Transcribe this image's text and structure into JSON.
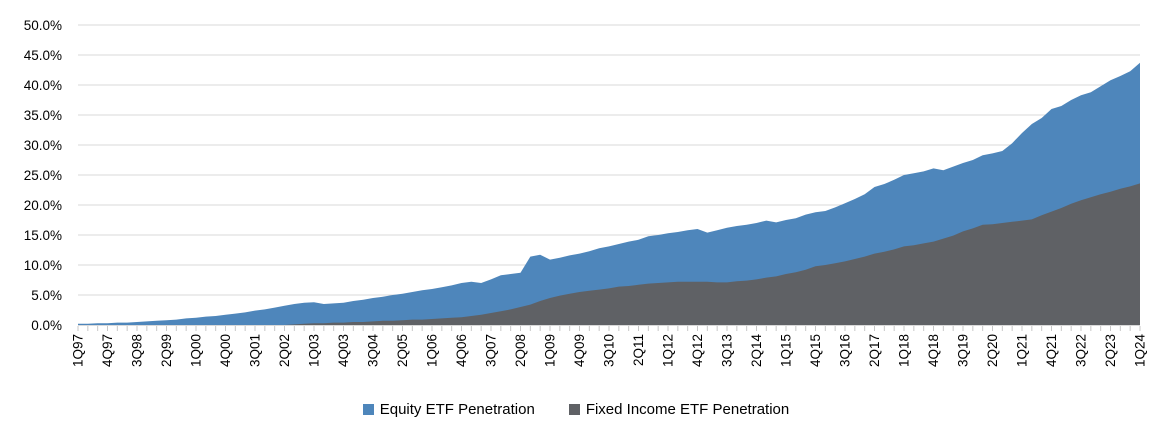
{
  "chart_data": {
    "type": "area",
    "title": "",
    "xlabel": "",
    "ylabel": "",
    "ylim": [
      0,
      50
    ],
    "y_tick_step": 5,
    "y_tick_labels": [
      "0.0%",
      "5.0%",
      "10.0%",
      "15.0%",
      "20.0%",
      "25.0%",
      "30.0%",
      "35.0%",
      "40.0%",
      "45.0%",
      "50.0%"
    ],
    "grid": true,
    "legend_position": "bottom-center",
    "x_tick_every": 3,
    "x_tick_labels_visible": [
      "1Q97",
      "4Q97",
      "3Q98",
      "2Q99",
      "1Q00",
      "4Q00",
      "3Q01",
      "2Q02",
      "1Q03",
      "4Q03",
      "3Q04",
      "2Q05",
      "1Q06",
      "4Q06",
      "3Q07",
      "2Q08",
      "1Q09",
      "4Q09",
      "3Q10",
      "2Q11",
      "1Q12",
      "4Q12",
      "3Q13",
      "2Q14",
      "1Q15",
      "4Q15",
      "3Q16",
      "2Q17",
      "1Q18",
      "4Q18",
      "3Q19",
      "2Q20",
      "1Q21",
      "4Q21",
      "3Q22",
      "2Q23",
      "1Q24"
    ],
    "categories": [
      "1Q97",
      "2Q97",
      "3Q97",
      "4Q97",
      "1Q98",
      "2Q98",
      "3Q98",
      "4Q98",
      "1Q99",
      "2Q99",
      "3Q99",
      "4Q99",
      "1Q00",
      "2Q00",
      "3Q00",
      "4Q00",
      "1Q01",
      "2Q01",
      "3Q01",
      "4Q01",
      "1Q02",
      "2Q02",
      "3Q02",
      "4Q02",
      "1Q03",
      "2Q03",
      "3Q03",
      "4Q03",
      "1Q04",
      "2Q04",
      "3Q04",
      "4Q04",
      "1Q05",
      "2Q05",
      "3Q05",
      "4Q05",
      "1Q06",
      "2Q06",
      "3Q06",
      "4Q06",
      "1Q07",
      "2Q07",
      "3Q07",
      "4Q07",
      "1Q08",
      "2Q08",
      "3Q08",
      "4Q08",
      "1Q09",
      "2Q09",
      "3Q09",
      "4Q09",
      "1Q10",
      "2Q10",
      "3Q10",
      "4Q10",
      "1Q11",
      "2Q11",
      "3Q11",
      "4Q11",
      "1Q12",
      "2Q12",
      "3Q12",
      "4Q12",
      "1Q13",
      "2Q13",
      "3Q13",
      "4Q13",
      "1Q14",
      "2Q14",
      "3Q14",
      "4Q14",
      "1Q15",
      "2Q15",
      "3Q15",
      "4Q15",
      "1Q16",
      "2Q16",
      "3Q16",
      "4Q16",
      "1Q17",
      "2Q17",
      "3Q17",
      "4Q17",
      "1Q18",
      "2Q18",
      "3Q18",
      "4Q18",
      "1Q19",
      "2Q19",
      "3Q19",
      "4Q19",
      "1Q20",
      "2Q20",
      "3Q20",
      "4Q20",
      "1Q21",
      "2Q21",
      "3Q21",
      "4Q21",
      "1Q22",
      "2Q22",
      "3Q22",
      "4Q22",
      "1Q23",
      "2Q23",
      "3Q23",
      "4Q23",
      "1Q24"
    ],
    "series": [
      {
        "name": "Equity ETF Penetration",
        "color": "#4E86BB",
        "values": [
          0.2,
          0.2,
          0.3,
          0.3,
          0.4,
          0.4,
          0.5,
          0.6,
          0.7,
          0.8,
          0.9,
          1.1,
          1.2,
          1.4,
          1.5,
          1.7,
          1.9,
          2.1,
          2.4,
          2.6,
          2.9,
          3.2,
          3.5,
          3.7,
          3.8,
          3.5,
          3.6,
          3.7,
          4.0,
          4.2,
          4.5,
          4.7,
          5.0,
          5.2,
          5.5,
          5.8,
          6.0,
          6.3,
          6.6,
          7.0,
          7.2,
          7.0,
          7.6,
          8.3,
          8.5,
          8.7,
          11.4,
          11.7,
          10.9,
          11.2,
          11.6,
          11.9,
          12.3,
          12.8,
          13.1,
          13.5,
          13.9,
          14.2,
          14.8,
          15.0,
          15.3,
          15.5,
          15.8,
          16.0,
          15.4,
          15.8,
          16.2,
          16.5,
          16.7,
          17.0,
          17.4,
          17.1,
          17.5,
          17.8,
          18.4,
          18.8,
          19.0,
          19.6,
          20.3,
          21.0,
          21.8,
          23.0,
          23.5,
          24.2,
          25.0,
          25.3,
          25.6,
          26.1,
          25.8,
          26.4,
          27.0,
          27.5,
          28.3,
          28.6,
          29.0,
          30.3,
          32.0,
          33.5,
          34.5,
          36.0,
          36.5,
          37.5,
          38.3,
          38.8,
          39.8,
          40.8,
          41.5,
          42.3,
          43.7
        ]
      },
      {
        "name": "Fixed Income ETF Penetration",
        "color": "#5F6165",
        "values": [
          0,
          0,
          0,
          0,
          0,
          0,
          0,
          0,
          0,
          0,
          0,
          0,
          0,
          0,
          0,
          0,
          0,
          0,
          0,
          0,
          0,
          0,
          0.1,
          0.2,
          0.3,
          0.3,
          0.4,
          0.4,
          0.5,
          0.5,
          0.6,
          0.7,
          0.7,
          0.8,
          0.9,
          0.9,
          1.0,
          1.1,
          1.2,
          1.3,
          1.5,
          1.7,
          2.0,
          2.3,
          2.6,
          3.0,
          3.4,
          4.0,
          4.5,
          4.9,
          5.2,
          5.5,
          5.7,
          5.9,
          6.1,
          6.4,
          6.5,
          6.7,
          6.9,
          7.0,
          7.1,
          7.2,
          7.2,
          7.2,
          7.2,
          7.1,
          7.1,
          7.3,
          7.4,
          7.6,
          7.9,
          8.1,
          8.5,
          8.8,
          9.2,
          9.8,
          10.0,
          10.3,
          10.6,
          11.0,
          11.4,
          11.9,
          12.2,
          12.6,
          13.1,
          13.3,
          13.6,
          13.9,
          14.4,
          14.9,
          15.6,
          16.1,
          16.7,
          16.8,
          17.0,
          17.2,
          17.4,
          17.6,
          18.3,
          18.9,
          19.5,
          20.2,
          20.8,
          21.3,
          21.8,
          22.2,
          22.7,
          23.1,
          23.6
        ]
      }
    ],
    "colors": {
      "gridline": "#D9D9D9",
      "axis_line": "#D9D9D9",
      "tick_mark": "#C8C8C8",
      "label_text": "#000000"
    }
  }
}
